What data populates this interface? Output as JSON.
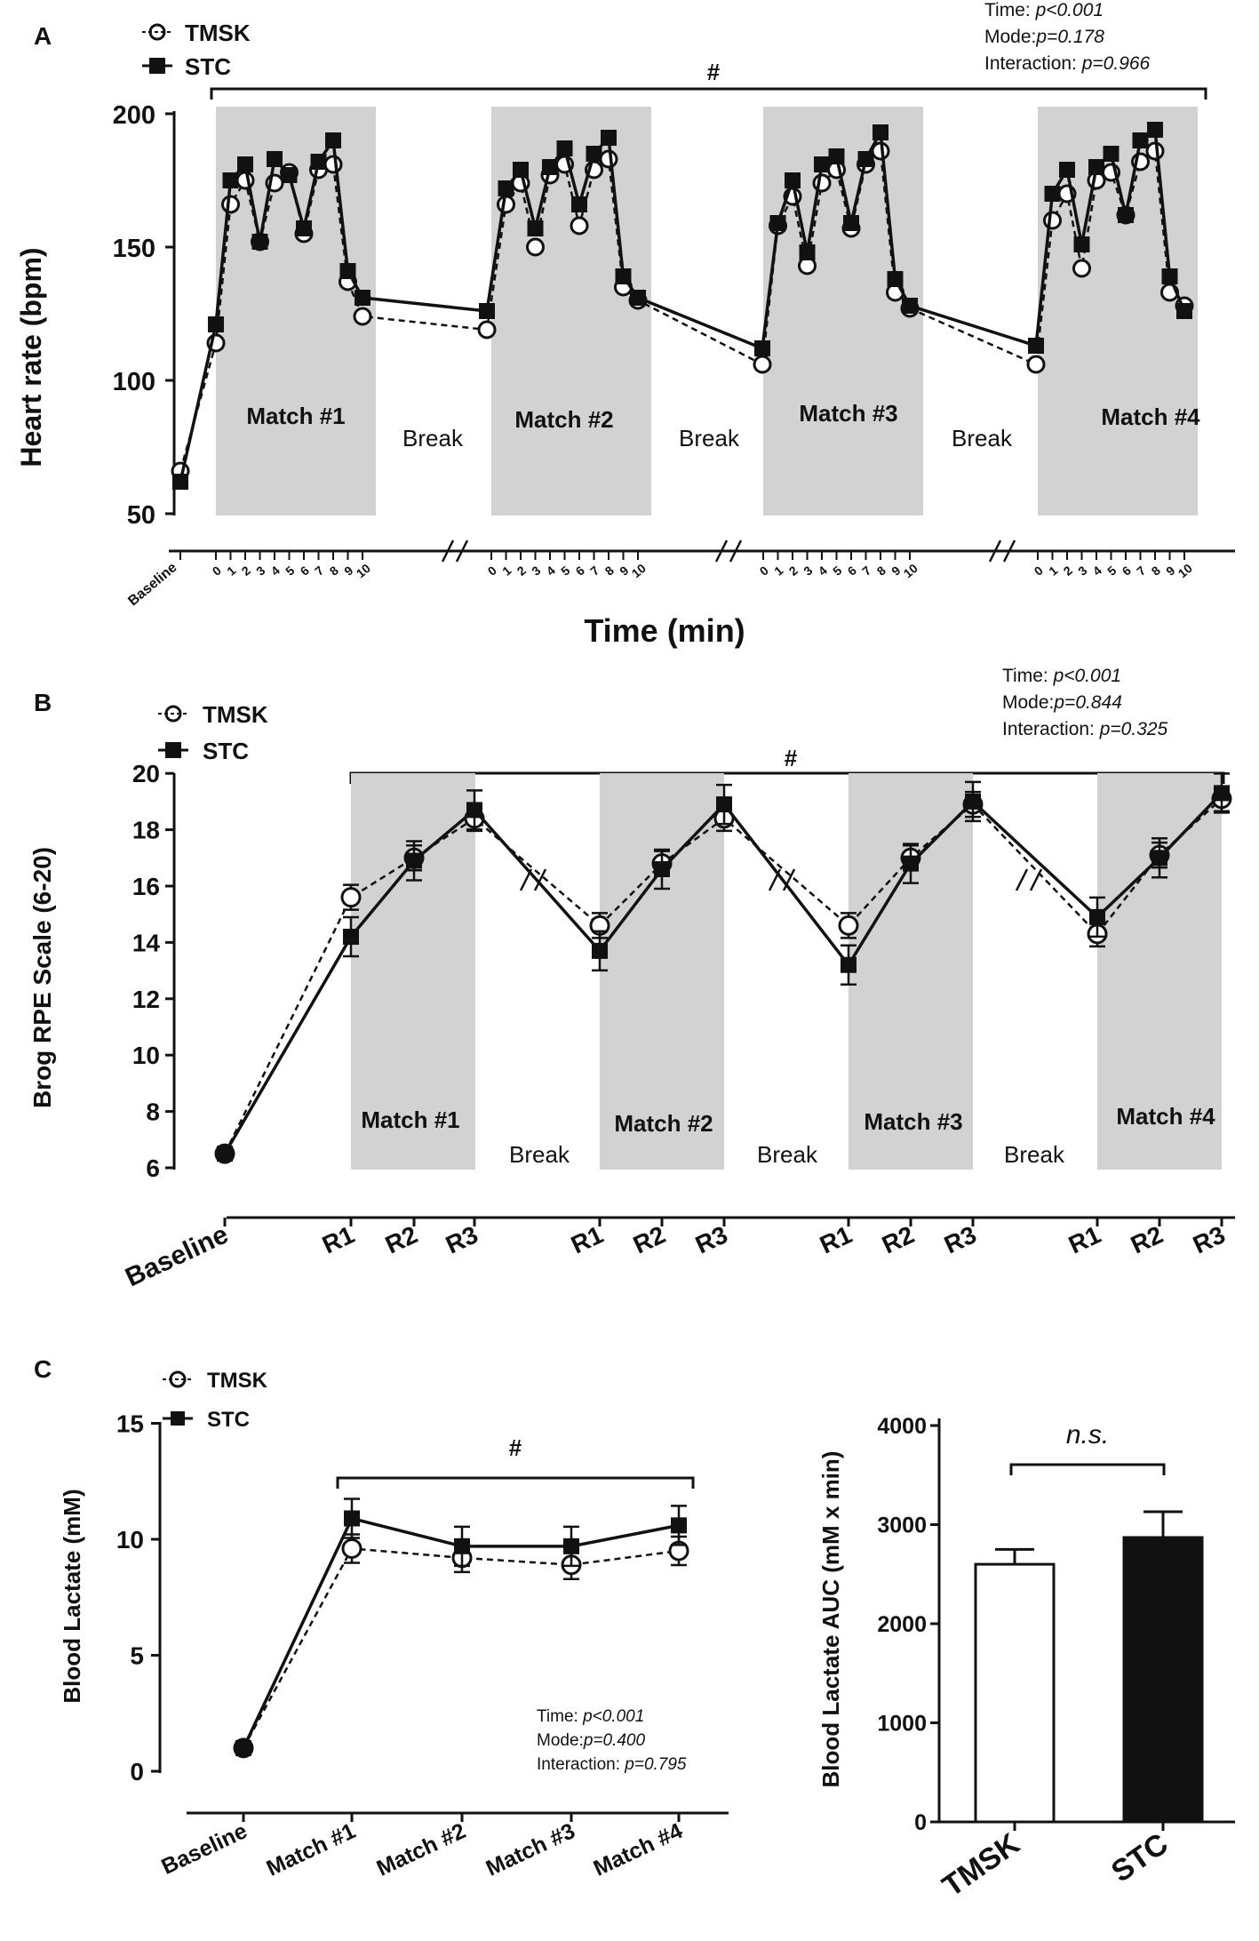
{
  "colors": {
    "shade": "#d2d2d2",
    "ink": "#111111",
    "stc": "#111111",
    "tmsk": "#ffffff"
  },
  "legend": {
    "tmsk": "TMSK",
    "stc": "STC"
  },
  "chart_data": [
    {
      "id": "A",
      "type": "line",
      "panel_label": "A",
      "ylabel": "Heart rate (bpm)",
      "xlabel": "Time (min)",
      "ylim": [
        50,
        200
      ],
      "yticks": [
        "200",
        "150",
        "100",
        "50"
      ],
      "stats": {
        "time_label": "Time: ",
        "time_p": "p<0.001",
        "mode_label": "Mode:",
        "mode_p": "p=0.178",
        "inter_label": "Interaction: ",
        "inter_p": "p=0.966"
      },
      "sig_marker": "#",
      "baseline_label": "Baseline",
      "minute_ticks": [
        "0",
        "1",
        "2",
        "3",
        "4",
        "5",
        "6",
        "7",
        "8",
        "9",
        "10"
      ],
      "match_labels": [
        "Match #1",
        "Match #2",
        "Match #3",
        "Match #4"
      ],
      "break_label": "Break",
      "baseline": {
        "stc": 62,
        "tmsk": 66
      },
      "series": [
        {
          "name": "STC",
          "values": [
            [
              121,
              175,
              181,
              152,
              183,
              177,
              157,
              182,
              190,
              141,
              131,
              126
            ],
            [
              172,
              179,
              157,
              180,
              187,
              166,
              185,
              191,
              139,
              131,
              112
            ],
            [
              159,
              175,
              148,
              181,
              184,
              159,
              183,
              193,
              138,
              128,
              113
            ],
            [
              170,
              179,
              151,
              180,
              185,
              162,
              190,
              194,
              139,
              126
            ]
          ]
        },
        {
          "name": "TMSK",
          "values": [
            [
              114,
              166,
              175,
              152,
              174,
              178,
              155,
              179,
              181,
              137,
              124,
              119
            ],
            [
              166,
              174,
              150,
              177,
              181,
              158,
              179,
              183,
              135,
              130,
              106
            ],
            [
              158,
              169,
              143,
              174,
              179,
              157,
              181,
              186,
              133,
              127,
              106
            ],
            [
              160,
              170,
              142,
              175,
              178,
              162,
              182,
              186,
              133,
              128
            ]
          ]
        }
      ]
    },
    {
      "id": "B",
      "type": "line",
      "panel_label": "B",
      "ylabel": "Brog RPE Scale (6-20)",
      "ylim": [
        6,
        20
      ],
      "yticks": [
        "20",
        "18",
        "16",
        "14",
        "12",
        "10",
        "8",
        "6"
      ],
      "stats": {
        "time_label": "Time: ",
        "time_p": "p<0.001",
        "mode_label": "Mode:",
        "mode_p": "p=0.844",
        "inter_label": "Interaction: ",
        "inter_p": "p=0.325"
      },
      "sig_marker": "#",
      "categories": [
        "Baseline",
        "R1",
        "R2",
        "R3",
        "R1",
        "R2",
        "R3",
        "R1",
        "R2",
        "R3",
        "R1",
        "R2",
        "R3"
      ],
      "match_labels": [
        "Match #1",
        "Match #2",
        "Match #3",
        "Match #4"
      ],
      "break_label": "Break",
      "series": [
        {
          "name": "STC",
          "values": [
            6.5,
            14.2,
            16.9,
            18.7,
            13.7,
            16.6,
            18.9,
            13.2,
            16.8,
            19.0,
            14.9,
            17.0,
            19.3
          ]
        },
        {
          "name": "TMSK",
          "values": [
            6.5,
            15.6,
            17.0,
            18.4,
            14.6,
            16.8,
            18.4,
            14.6,
            17.0,
            18.9,
            14.3,
            17.1,
            19.1
          ]
        }
      ]
    },
    {
      "id": "C1",
      "type": "line",
      "panel_label": "C",
      "ylabel": "Blood Lactate (mM)",
      "ylim": [
        0,
        15
      ],
      "yticks": [
        "15",
        "10",
        "5",
        "0"
      ],
      "categories": [
        "Baseline",
        "Match #1",
        "Match #2",
        "Match #3",
        "Match #4"
      ],
      "stats": {
        "time_label": "Time: ",
        "time_p": "p<0.001",
        "mode_label": "Mode:",
        "mode_p": "p=0.400",
        "inter_label": "Interaction: ",
        "inter_p": "p=0.795"
      },
      "sig_marker": "#",
      "series": [
        {
          "name": "STC",
          "values": [
            1.0,
            10.9,
            9.7,
            9.7,
            10.6
          ]
        },
        {
          "name": "TMSK",
          "values": [
            1.0,
            9.6,
            9.2,
            8.9,
            9.5
          ]
        }
      ]
    },
    {
      "id": "C2",
      "type": "bar",
      "ylabel": "Blood Lactate AUC (mM x min)",
      "ylim": [
        0,
        4000
      ],
      "yticks": [
        "4000",
        "3000",
        "2000",
        "1000",
        "0"
      ],
      "categories": [
        "TMSK",
        "STC"
      ],
      "values": [
        2600,
        2870
      ],
      "errors": [
        150,
        260
      ],
      "annotation": "n.s."
    }
  ]
}
